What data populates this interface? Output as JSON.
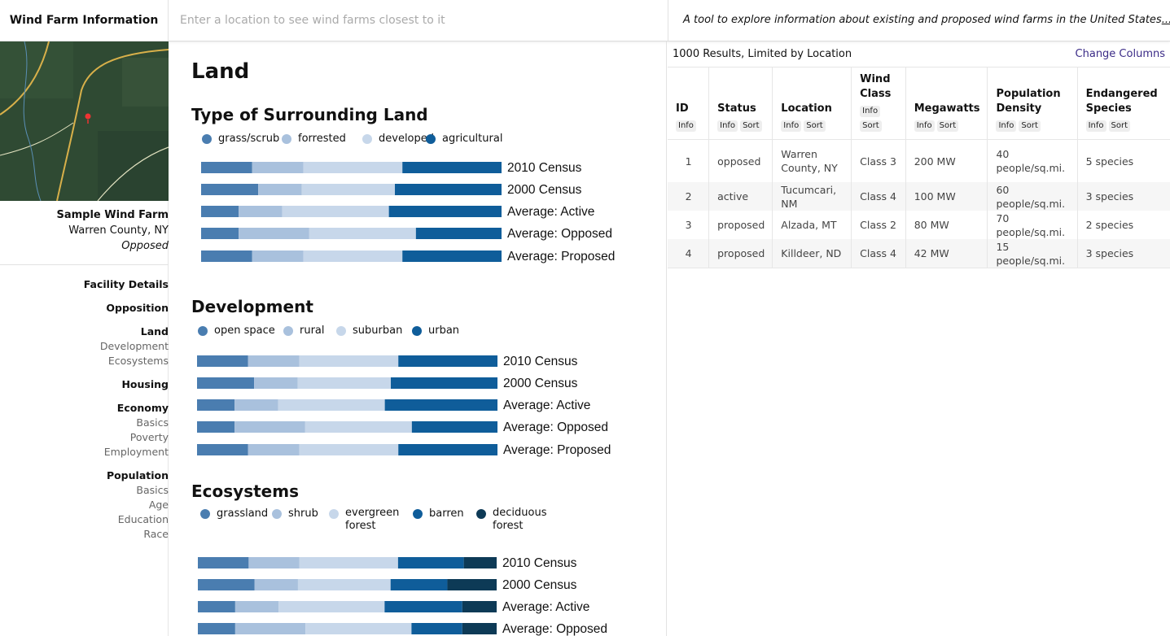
{
  "header": {
    "title": "Wind Farm Information",
    "search_placeholder": "Enter a location to see wind farms closest to it",
    "tagline": "A tool to explore information about existing and proposed wind farms in the United States",
    "tagline_more": "..."
  },
  "sidebar": {
    "farm": {
      "name": "Sample Wind Farm",
      "location": "Warren County, NY",
      "status": "Opposed"
    },
    "nav": [
      {
        "label": "Facility Details",
        "children": []
      },
      {
        "label": "Opposition",
        "children": []
      },
      {
        "label": "Land",
        "children": [
          "Development",
          "Ecosystems"
        ]
      },
      {
        "label": "Housing",
        "children": []
      },
      {
        "label": "Economy",
        "children": [
          "Basics",
          "Poverty",
          "Employment"
        ]
      },
      {
        "label": "Population",
        "children": [
          "Basics",
          "Age",
          "Education",
          "Race"
        ]
      }
    ]
  },
  "content": {
    "page_title": "Land",
    "sections": [
      {
        "title": "Type of Surrounding Land"
      },
      {
        "title": "Development"
      },
      {
        "title": "Ecosystems"
      }
    ]
  },
  "colors": {
    "c1": "#4a7db0",
    "c2": "#a9c1dd",
    "c3": "#c7d7ea",
    "c4": "#0f5d9a",
    "c5": "#0d3a56",
    "link": "#3b2b87"
  },
  "chart_data": [
    {
      "type": "bar",
      "stacked": true,
      "orientation": "horizontal",
      "categories": [
        "2010 Census",
        "2000 Census",
        "Average: Active",
        "Average: Opposed",
        "Average: Proposed"
      ],
      "series": [
        {
          "name": "grass/scrub",
          "values": [
            17,
            19,
            12.5,
            12.5,
            17
          ]
        },
        {
          "name": "forrested",
          "values": [
            17,
            14.5,
            14.5,
            23.5,
            17
          ]
        },
        {
          "name": "developed",
          "values": [
            33,
            31,
            35.5,
            35.5,
            33
          ]
        },
        {
          "name": "agricultural",
          "values": [
            33,
            35.5,
            37.5,
            28.5,
            33
          ]
        }
      ],
      "xlim": [
        0,
        100
      ]
    },
    {
      "type": "bar",
      "stacked": true,
      "orientation": "horizontal",
      "categories": [
        "2010 Census",
        "2000 Census",
        "Average: Active",
        "Average: Opposed",
        "Average: Proposed"
      ],
      "series": [
        {
          "name": "open space",
          "values": [
            17,
            19,
            12.5,
            12.5,
            17
          ]
        },
        {
          "name": "rural",
          "values": [
            17,
            14.5,
            14.5,
            23.5,
            17
          ]
        },
        {
          "name": "suburban",
          "values": [
            33,
            31,
            35.5,
            35.5,
            33
          ]
        },
        {
          "name": "urban",
          "values": [
            33,
            35.5,
            37.5,
            28.5,
            33
          ]
        }
      ],
      "xlim": [
        0,
        100
      ]
    },
    {
      "type": "bar",
      "stacked": true,
      "orientation": "horizontal",
      "categories": [
        "2010 Census",
        "2000 Census",
        "Average: Active",
        "Average: Opposed"
      ],
      "series": [
        {
          "name": "grassland",
          "values": [
            17,
            19,
            12.5,
            12.5
          ]
        },
        {
          "name": "shrub",
          "values": [
            17,
            14.5,
            14.5,
            23.5
          ]
        },
        {
          "name": "evergreen forest",
          "values": [
            33,
            31,
            35.5,
            35.5
          ]
        },
        {
          "name": "barren",
          "values": [
            22,
            19,
            26,
            17
          ]
        },
        {
          "name": "deciduous forest",
          "values": [
            11,
            16.5,
            11.5,
            11.5
          ]
        }
      ],
      "xlim": [
        0,
        100
      ]
    }
  ],
  "results": {
    "count_text": "1000 Results, Limited by Location",
    "change_columns": "Change Columns",
    "info_label": "Info",
    "sort_label": "Sort",
    "columns": [
      "ID",
      "Status",
      "Location",
      "Wind Class",
      "Megawatts",
      "Population Density",
      "Endangered Species"
    ],
    "rows": [
      [
        "1",
        "opposed",
        "Warren County, NY",
        "Class 3",
        "200 MW",
        "40 people/sq.mi.",
        "5 species"
      ],
      [
        "2",
        "active",
        "Tucumcari, NM",
        "Class 4",
        "100 MW",
        "60 people/sq.mi.",
        "3 species"
      ],
      [
        "3",
        "proposed",
        "Alzada, MT",
        "Class 2",
        "80 MW",
        "70 people/sq.mi.",
        "2 species"
      ],
      [
        "4",
        "proposed",
        "Killdeer, ND",
        "Class 4",
        "42 MW",
        "15 people/sq.mi.",
        "3 species"
      ]
    ]
  }
}
